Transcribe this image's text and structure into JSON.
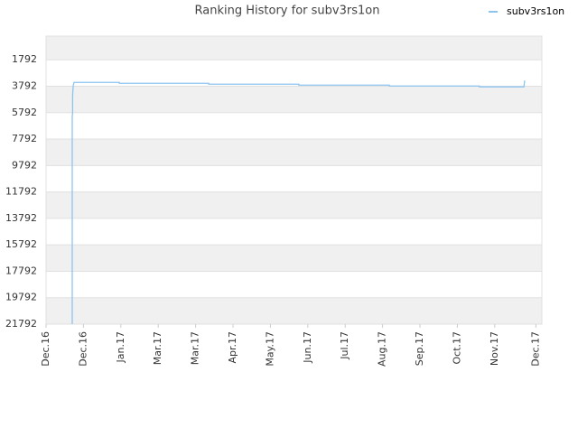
{
  "chart_data": {
    "type": "line",
    "title": "Ranking History for subv3rs1on",
    "x": [
      0.7,
      0.7,
      0.71,
      0.71,
      0.72,
      0.73,
      0.75,
      1.96,
      1.96,
      4.35,
      4.35,
      6.76,
      6.76,
      9.18,
      9.18,
      11.59,
      11.59,
      12.78,
      12.8
    ],
    "series": [
      {
        "name": "subv3rs1on",
        "color": "#8cc4f0",
        "values": [
          21792,
          6100,
          5800,
          4500,
          4000,
          3700,
          3500,
          3500,
          3570,
          3570,
          3636,
          3636,
          3705,
          3705,
          3773,
          3773,
          3840,
          3840,
          3363
        ]
      }
    ],
    "xlim": [
      0,
      13.26
    ],
    "xticks": [
      {
        "value": 0,
        "label": "Dec.16"
      },
      {
        "value": 1,
        "label": "Dec.16"
      },
      {
        "value": 2,
        "label": "Jan.17"
      },
      {
        "value": 3,
        "label": "Mar.17"
      },
      {
        "value": 4,
        "label": "Mar.17"
      },
      {
        "value": 5,
        "label": "Apr.17"
      },
      {
        "value": 6,
        "label": "May.17"
      },
      {
        "value": 7,
        "label": "Jun.17"
      },
      {
        "value": 8,
        "label": "Jul.17"
      },
      {
        "value": 9,
        "label": "Aug.17"
      },
      {
        "value": 10,
        "label": "Sep.17"
      },
      {
        "value": 11,
        "label": "Oct.17"
      },
      {
        "value": 12,
        "label": "Nov.17"
      },
      {
        "value": 13.1,
        "label": "Dec.17"
      }
    ],
    "ylim": [
      21792,
      0
    ],
    "yticks": [
      1792,
      3792,
      5792,
      7792,
      9792,
      11792,
      13792,
      15792,
      17792,
      19792,
      21792
    ],
    "grid": true,
    "legend": "top-right"
  }
}
